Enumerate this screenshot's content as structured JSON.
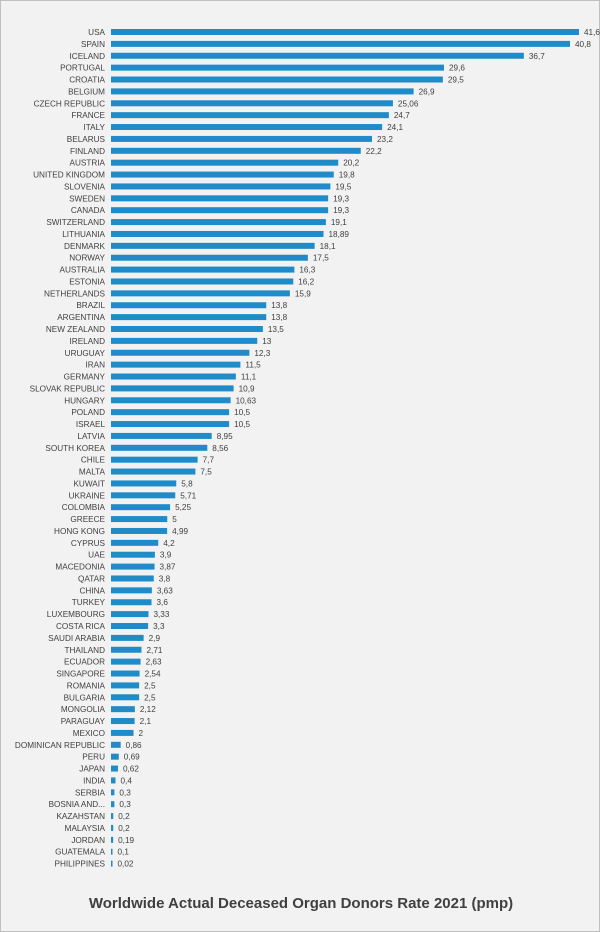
{
  "chart_data": {
    "type": "bar",
    "orientation": "horizontal",
    "title": "Worldwide Actual Deceased Organ Donors Rate 2021 (pmp)",
    "bar_color": "#1f8bc8",
    "categories": [
      "USA",
      "SPAIN",
      "ICELAND",
      "PORTUGAL",
      "CROATIA",
      "BELGIUM",
      "CZECH REPUBLIC",
      "FRANCE",
      "ITALY",
      "BELARUS",
      "FINLAND",
      "AUSTRIA",
      "UNITED KINGDOM",
      "SLOVENIA",
      "SWEDEN",
      "CANADA",
      "SWITZERLAND",
      "LITHUANIA",
      "DENMARK",
      "NORWAY",
      "AUSTRALIA",
      "ESTONIA",
      "NETHERLANDS",
      "BRAZIL",
      "ARGENTINA",
      "NEW ZEALAND",
      "IRELAND",
      "URUGUAY",
      "IRAN",
      "GERMANY",
      "SLOVAK REPUBLIC",
      "HUNGARY",
      "POLAND",
      "ISRAEL",
      "LATVIA",
      "SOUTH KOREA",
      "CHILE",
      "MALTA",
      "KUWAIT",
      "UKRAINE",
      "COLOMBIA",
      "GREECE",
      "HONG KONG",
      "CYPRUS",
      "UAE",
      "MACEDONIA",
      "QATAR",
      "CHINA",
      "TURKEY",
      "LUXEMBOURG",
      "COSTA RICA",
      "SAUDI ARABIA",
      "THAILAND",
      "ECUADOR",
      "SINGAPORE",
      "ROMANIA",
      "BULGARIA",
      "MONGOLIA",
      "PARAGUAY",
      "MEXICO",
      "DOMINICAN REPUBLIC",
      "PERU",
      "JAPAN",
      "INDIA",
      "SERBIA",
      "BOSNIA AND...",
      "KAZAHSTAN",
      "MALAYSIA",
      "JORDAN",
      "GUATEMALA",
      "PHILIPPINES"
    ],
    "values": [
      41.6,
      40.8,
      36.7,
      29.6,
      29.5,
      26.9,
      25.06,
      24.7,
      24.1,
      23.2,
      22.2,
      20.2,
      19.8,
      19.5,
      19.3,
      19.3,
      19.1,
      18.89,
      18.1,
      17.5,
      16.3,
      16.2,
      15.9,
      13.8,
      13.8,
      13.5,
      13,
      12.3,
      11.5,
      11.1,
      10.9,
      10.63,
      10.5,
      10.5,
      8.95,
      8.56,
      7.7,
      7.5,
      5.8,
      5.71,
      5.25,
      5,
      4.99,
      4.2,
      3.9,
      3.87,
      3.8,
      3.63,
      3.6,
      3.33,
      3.3,
      2.9,
      2.71,
      2.63,
      2.54,
      2.5,
      2.5,
      2.12,
      2.1,
      2,
      0.86,
      0.69,
      0.62,
      0.4,
      0.3,
      0.3,
      0.2,
      0.2,
      0.19,
      0.1,
      0.02
    ],
    "value_labels": [
      "41,6",
      "40,8",
      "36,7",
      "29,6",
      "29,5",
      "26,9",
      "25,06",
      "24,7",
      "24,1",
      "23,2",
      "22,2",
      "20,2",
      "19,8",
      "19,5",
      "19,3",
      "19,3",
      "19,1",
      "18,89",
      "18,1",
      "17,5",
      "16,3",
      "16,2",
      "15,9",
      "13,8",
      "13,8",
      "13,5",
      "13",
      "12,3",
      "11,5",
      "11,1",
      "10,9",
      "10,63",
      "10,5",
      "10,5",
      "8,95",
      "8,56",
      "7,7",
      "7,5",
      "5,8",
      "5,71",
      "5,25",
      "5",
      "4,99",
      "4,2",
      "3,9",
      "3,87",
      "3,8",
      "3,63",
      "3,6",
      "3,33",
      "3,3",
      "2,9",
      "2,71",
      "2,63",
      "2,54",
      "2,5",
      "2,5",
      "2,12",
      "2,1",
      "2",
      "0,86",
      "0,69",
      "0,62",
      "0,4",
      "0,3",
      "0,3",
      "0,2",
      "0,2",
      "0,19",
      "0,1",
      "0,02"
    ],
    "xlabel": "",
    "ylabel": "",
    "grid": false,
    "legend": "none"
  }
}
